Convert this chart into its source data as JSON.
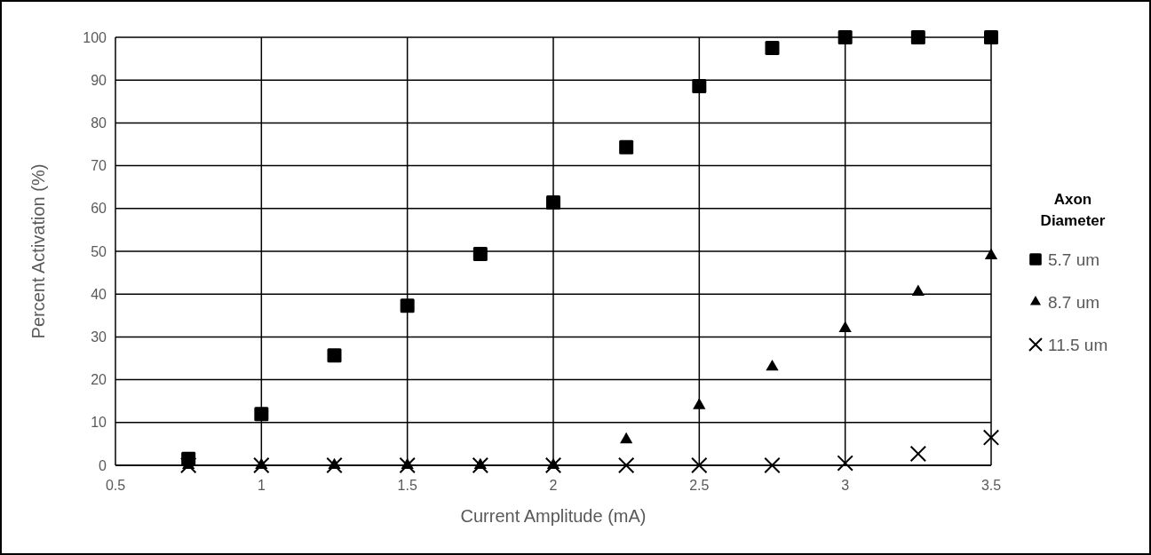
{
  "chart_data": {
    "type": "scatter",
    "xlabel": "Current Amplitude (mA)",
    "ylabel": "Percent Activation (%)",
    "legend_title": "Axon Diameter",
    "legend": "right",
    "grid": true,
    "x": [
      0.75,
      1,
      1.25,
      1.5,
      1.75,
      2,
      2.25,
      2.5,
      2.75,
      3,
      3.25,
      3.5
    ],
    "xlim": [
      0.5,
      3.5
    ],
    "xticks": [
      0.5,
      1,
      1.5,
      2,
      2.5,
      3,
      3.5
    ],
    "ylim": [
      0,
      100
    ],
    "yticks": [
      0,
      10,
      20,
      30,
      40,
      50,
      60,
      70,
      80,
      90,
      100
    ],
    "series": [
      {
        "name": "5.7 um",
        "color": "#000000",
        "marker": "square",
        "values": [
          1.5,
          12,
          25.7,
          37.3,
          49.4,
          61.4,
          74.3,
          88.6,
          97.5,
          100,
          100,
          100
        ]
      },
      {
        "name": "8.7 um",
        "color": "#000000",
        "marker": "triangle",
        "values": [
          0,
          0,
          0,
          0,
          0,
          0,
          6,
          14,
          23,
          32,
          40.5,
          49
        ]
      },
      {
        "name": "11.5 um",
        "color": "#000000",
        "marker": "cross",
        "values": [
          0,
          0,
          0,
          0,
          0,
          0,
          0,
          0,
          0,
          0.5,
          2.7,
          6.5
        ]
      }
    ]
  }
}
